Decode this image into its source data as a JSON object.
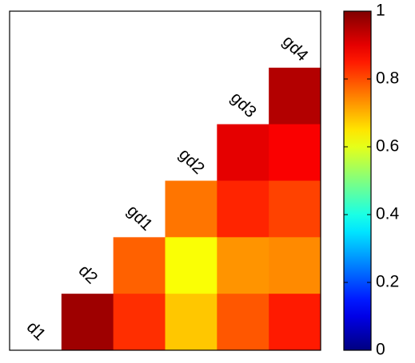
{
  "chart_data": {
    "type": "heatmap",
    "labels": [
      "d1",
      "d2",
      "gd1",
      "gd2",
      "gd3",
      "gd4"
    ],
    "values": [
      [
        null,
        null,
        null,
        null,
        null,
        null
      ],
      [
        null,
        null,
        null,
        null,
        null,
        0.95
      ],
      [
        null,
        null,
        null,
        null,
        0.9,
        0.88
      ],
      [
        null,
        null,
        null,
        0.76,
        0.84,
        0.81
      ],
      [
        null,
        null,
        0.78,
        0.62,
        0.73,
        0.74
      ],
      [
        null,
        0.97,
        0.83,
        0.68,
        0.79,
        0.85
      ]
    ],
    "colormap": "jet",
    "zlim": [
      0,
      1
    ],
    "zticks": [
      0,
      0.2,
      0.4,
      0.6,
      0.8,
      1
    ]
  }
}
